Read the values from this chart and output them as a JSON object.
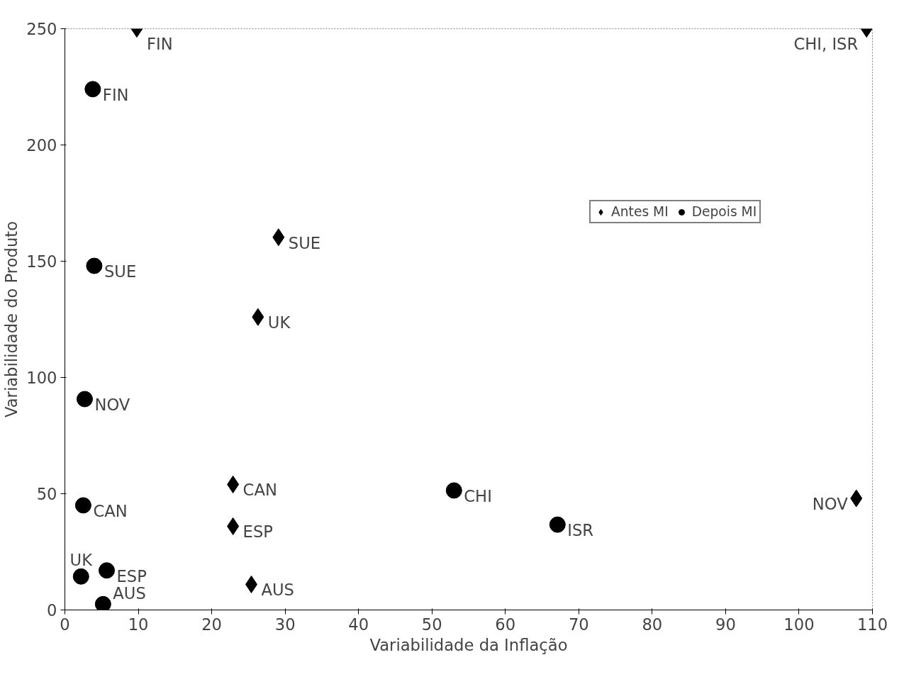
{
  "chart_data": {
    "type": "scatter",
    "xlabel": "Variabilidade da Inflação",
    "ylabel": "Variabilidade do Produto",
    "xlim": [
      0,
      110
    ],
    "xticks": [
      0,
      10,
      20,
      30,
      40,
      50,
      60,
      70,
      80,
      90,
      100,
      110
    ],
    "ylim": [
      0,
      250
    ],
    "yticks": [
      0,
      50,
      100,
      150,
      200,
      250
    ],
    "grid": false,
    "legend": "right",
    "series": [
      {
        "name": "Antes MI",
        "color": "#000000",
        "marker": "diamond",
        "x": [
          9.8,
          109.2,
          29.1,
          26.3,
          22.9,
          22.9,
          25.4,
          107.8
        ],
        "values": [
          250,
          250,
          160.3,
          126,
          54,
          36,
          11,
          48
        ]
      },
      {
        "name": "Depois MI",
        "color": "#000000",
        "marker": "circle",
        "x": [
          3.8,
          4.0,
          2.7,
          2.5,
          2.2,
          5.7,
          5.2,
          53,
          67.1
        ],
        "values": [
          224,
          148,
          90.7,
          45,
          14.4,
          17,
          2.5,
          51.4,
          36.7
        ]
      }
    ],
    "annotations": [
      {
        "text": "FIN",
        "x": 9.8,
        "y": 250
      },
      {
        "text": "CHI, ISR",
        "x": 109.2,
        "y": 250
      },
      {
        "text": "SUE",
        "x": 29.1,
        "y": 160.3
      },
      {
        "text": "UK",
        "x": 26.3,
        "y": 126
      },
      {
        "text": "CAN",
        "x": 22.9,
        "y": 54
      },
      {
        "text": "ESP",
        "x": 22.9,
        "y": 36
      },
      {
        "text": "AUS",
        "x": 25.4,
        "y": 11
      },
      {
        "text": "NOV",
        "x": 107.8,
        "y": 48
      },
      {
        "text": "FIN",
        "x": 3.8,
        "y": 224
      },
      {
        "text": "SUE",
        "x": 4.0,
        "y": 148
      },
      {
        "text": "NOV",
        "x": 2.7,
        "y": 90.7
      },
      {
        "text": "CAN",
        "x": 2.5,
        "y": 45
      },
      {
        "text": "UK",
        "x": 2.2,
        "y": 14.4
      },
      {
        "text": "ESP",
        "x": 5.7,
        "y": 17
      },
      {
        "text": "AUS",
        "x": 5.2,
        "y": 2.5
      },
      {
        "text": "CHI",
        "x": 53,
        "y": 51.4
      },
      {
        "text": "ISR",
        "x": 67.1,
        "y": 36.7
      }
    ]
  }
}
